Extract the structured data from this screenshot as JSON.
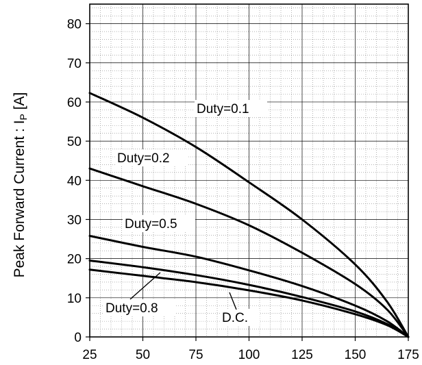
{
  "chart_data": {
    "type": "line",
    "title": "",
    "xlabel": "",
    "ylabel": "Peak Forward Current : I",
    "ylabel_subscript": "P",
    "ylabel_unit": " [A]",
    "xlim": [
      25,
      175
    ],
    "ylim": [
      0,
      85
    ],
    "x_ticks": [
      "25",
      "50",
      "75",
      "100",
      "125",
      "150",
      "175"
    ],
    "y_ticks": [
      "0",
      "10",
      "20",
      "30",
      "40",
      "50",
      "60",
      "70",
      "80"
    ],
    "grid": true,
    "series": [
      {
        "name": "Duty=0.1",
        "x": [
          25,
          50,
          75,
          100,
          125,
          150,
          165,
          175
        ],
        "y": [
          62.3,
          56.0,
          48.5,
          39.5,
          30.0,
          18.5,
          9.0,
          0
        ]
      },
      {
        "name": "Duty=0.2",
        "x": [
          25,
          50,
          75,
          100,
          125,
          150,
          165,
          175
        ],
        "y": [
          43.0,
          38.5,
          34.0,
          28.5,
          21.5,
          13.5,
          7.0,
          0
        ]
      },
      {
        "name": "Duty=0.5",
        "x": [
          25,
          50,
          75,
          100,
          125,
          150,
          165,
          175
        ],
        "y": [
          25.8,
          23.0,
          20.5,
          17.0,
          13.0,
          8.0,
          4.0,
          0
        ]
      },
      {
        "name": "Duty=0.8",
        "x": [
          25,
          50,
          75,
          100,
          125,
          150,
          165,
          175
        ],
        "y": [
          19.5,
          17.8,
          15.8,
          13.3,
          10.2,
          6.5,
          3.3,
          0
        ]
      },
      {
        "name": "D.C.",
        "x": [
          25,
          50,
          75,
          100,
          125,
          150,
          165,
          175
        ],
        "y": [
          17.2,
          15.6,
          14.0,
          11.9,
          9.3,
          5.8,
          3.0,
          0
        ]
      }
    ],
    "annotations": [
      "Duty=0.1",
      "Duty=0.2",
      "Duty=0.5",
      "Duty=0.8",
      "D.C."
    ]
  }
}
